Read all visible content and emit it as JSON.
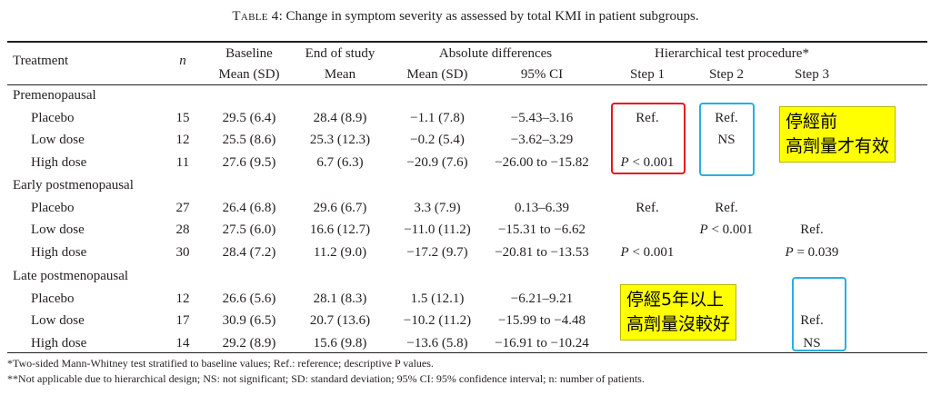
{
  "caption": {
    "label": "Table 4",
    "text": ": Change in symptom severity as assessed by total KMI in patient subgroups."
  },
  "header": {
    "treatment": "Treatment",
    "n": "n",
    "baseline": "Baseline",
    "baseline_sub": "Mean (SD)",
    "end": "End of study",
    "end_sub": "Mean",
    "absdiff": "Absolute differences",
    "absdiff_mean": "Mean (SD)",
    "absdiff_ci": "95% CI",
    "hier": "Hierarchical test procedure*",
    "step1": "Step 1",
    "step2": "Step 2",
    "step3": "Step 3"
  },
  "groups": [
    {
      "title": "Premenopausal",
      "rows": [
        {
          "treatment": "Placebo",
          "n": "15",
          "baseline": "29.5 (6.4)",
          "end": "28.4 (8.9)",
          "mean": "−1.1 (7.8)",
          "ci": "−5.43–3.16",
          "step1": "Ref.",
          "step2": "Ref.",
          "step3": ""
        },
        {
          "treatment": "Low dose",
          "n": "12",
          "baseline": "25.5 (8.6)",
          "end": "25.3 (12.3)",
          "mean": "−0.2 (5.4)",
          "ci": "−3.62–3.29",
          "step1": "",
          "step2": "NS",
          "step3": ""
        },
        {
          "treatment": "High dose",
          "n": "11",
          "baseline": "27.6 (9.5)",
          "end": "6.7 (6.3)",
          "mean": "−20.9 (7.6)",
          "ci": "−26.00 to −15.82",
          "step1": "P < 0.001",
          "step2": "",
          "step3": ""
        }
      ]
    },
    {
      "title": "Early postmenopausal",
      "rows": [
        {
          "treatment": "Placebo",
          "n": "27",
          "baseline": "26.4 (6.8)",
          "end": "29.6 (6.7)",
          "mean": "3.3 (7.9)",
          "ci": "0.13–6.39",
          "step1": "Ref.",
          "step2": "Ref.",
          "step3": ""
        },
        {
          "treatment": "Low dose",
          "n": "28",
          "baseline": "27.5 (6.0)",
          "end": "16.6 (12.7)",
          "mean": "−11.0 (11.2)",
          "ci": "−15.31 to −6.62",
          "step1": "",
          "step2": "P < 0.001",
          "step3": "Ref."
        },
        {
          "treatment": "High dose",
          "n": "30",
          "baseline": "28.4 (7.2)",
          "end": "11.2 (9.0)",
          "mean": "−17.2 (9.7)",
          "ci": "−20.81 to −13.53",
          "step1": "P < 0.001",
          "step2": "",
          "step3": "P = 0.039"
        }
      ]
    },
    {
      "title": "Late postmenopausal",
      "rows": [
        {
          "treatment": "Placebo",
          "n": "12",
          "baseline": "26.6 (5.6)",
          "end": "28.1 (8.3)",
          "mean": "1.5 (12.1)",
          "ci": "−6.21–9.21",
          "step1": "",
          "step2": "",
          "step3": ""
        },
        {
          "treatment": "Low dose",
          "n": "17",
          "baseline": "30.9 (6.5)",
          "end": "20.7 (13.6)",
          "mean": "−10.2 (11.2)",
          "ci": "−15.99 to −4.48",
          "step1": "",
          "step2": "",
          "step3": "Ref."
        },
        {
          "treatment": "High dose",
          "n": "14",
          "baseline": "29.2 (8.9)",
          "end": "15.6 (9.8)",
          "mean": "−13.6 (5.8)",
          "ci": "−16.91 to −10.24",
          "step1": "",
          "step2": "",
          "step3": "NS"
        }
      ]
    }
  ],
  "footnotes": [
    "*Two-sided Mann-Whitney test stratified to baseline values; Ref.: reference; descriptive P values.",
    "**Not applicable due to hierarchical design; NS: not significant; SD: standard deviation; 95% CI: 95% confidence interval; n: number of patients."
  ],
  "annotations": {
    "note1": {
      "line1": "停經前",
      "line2": "高劑量才有效"
    },
    "note2": {
      "line1": "停經5年以上",
      "line2": "高劑量沒較好"
    },
    "box_colors": {
      "red": "#e8141c",
      "blue": "#29aee3"
    }
  }
}
